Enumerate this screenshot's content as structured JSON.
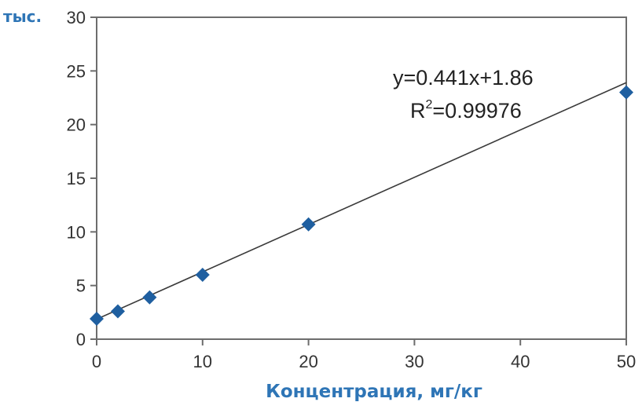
{
  "chart_data": {
    "type": "scatter",
    "title": "",
    "xlabel": "Концентрация, мг/кг",
    "ylabel": "тыс.",
    "xlim": [
      0,
      50
    ],
    "ylim": [
      0,
      30
    ],
    "x_ticks": [
      0,
      10,
      20,
      30,
      40,
      50
    ],
    "y_ticks": [
      0,
      5,
      10,
      15,
      20,
      25,
      30
    ],
    "grid": false,
    "points": [
      {
        "x": 0,
        "y": 1.9
      },
      {
        "x": 2,
        "y": 2.6
      },
      {
        "x": 5,
        "y": 3.9
      },
      {
        "x": 10,
        "y": 6.0
      },
      {
        "x": 20,
        "y": 10.7
      },
      {
        "x": 50,
        "y": 23.0
      }
    ],
    "trendline": {
      "slope": 0.441,
      "intercept": 1.86
    },
    "annotations": {
      "equation": "y=0.441x+1.86",
      "r2_prefix": "R",
      "r2_sup": "2",
      "r2_value": "=0.99976"
    },
    "colors": {
      "marker": "#1f5fa0",
      "line": "#3a3a3a",
      "axis": "#6d6d6d",
      "label": "#2e75b6"
    }
  }
}
